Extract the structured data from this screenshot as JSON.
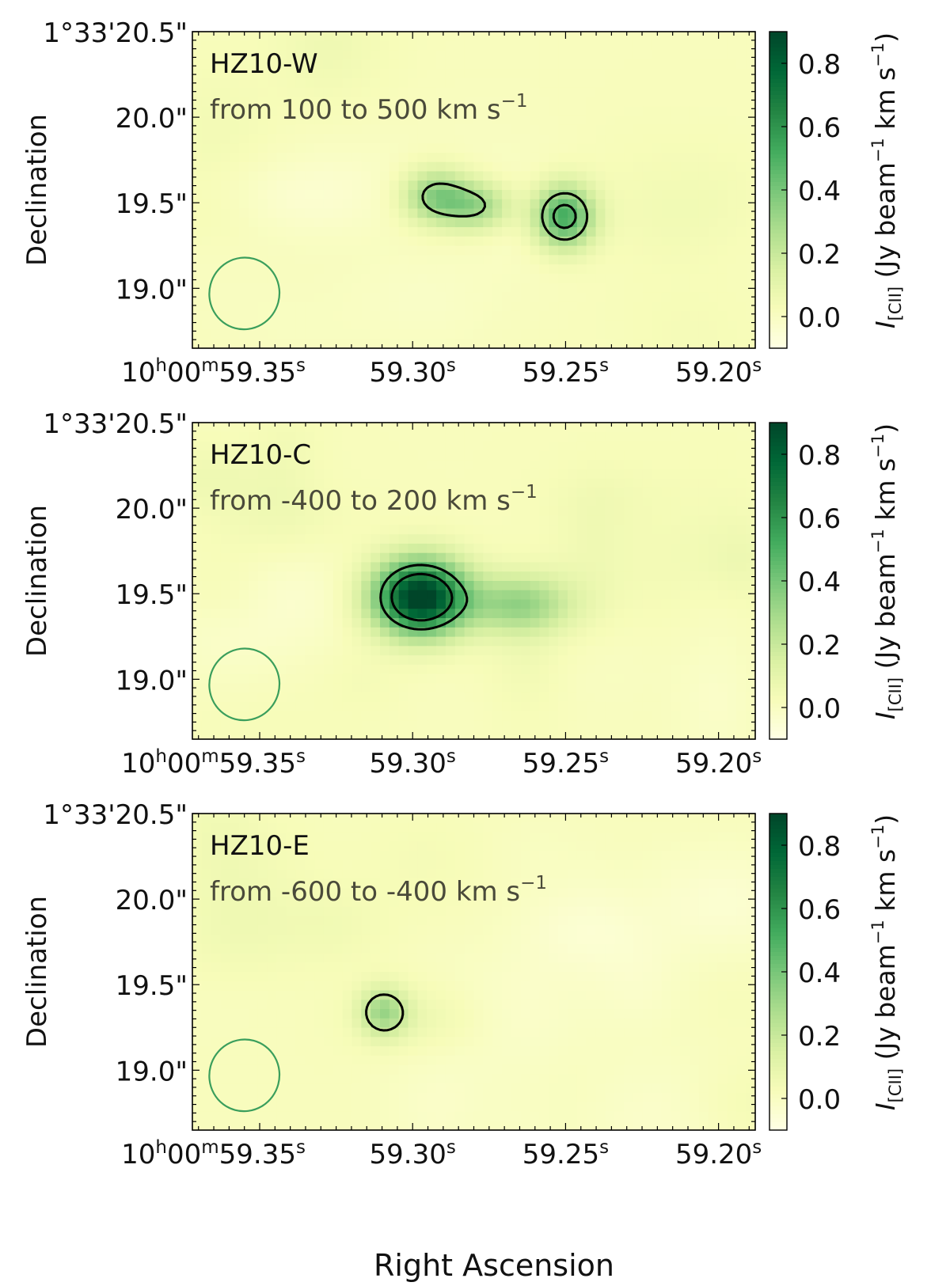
{
  "figure": {
    "xlabel": "Right Ascension",
    "ylabel": "Declination"
  },
  "chart_data": [
    {
      "type": "heatmap",
      "title": "HZ10-W",
      "subtitle_text": "from 100 to 500 km s",
      "subtitle_sup": "−1",
      "xlabel": "",
      "ylabel": "Declination",
      "xticks": [
        {
          "prefix_main": "10",
          "prefix_sup1": "h",
          "prefix_mid": "00",
          "prefix_sup2": "m",
          "main": "59.35",
          "sup": "s",
          "value": 59.35
        },
        {
          "main": "59.30",
          "sup": "s",
          "value": 59.3
        },
        {
          "main": "59.25",
          "sup": "s",
          "value": 59.25
        },
        {
          "main": "59.20",
          "sup": "s",
          "value": 59.2
        }
      ],
      "yticks": [
        {
          "label": "1°33'20.5\"",
          "value": 20.5
        },
        {
          "label": "20.0\"",
          "value": 20.0
        },
        {
          "label": "19.5\"",
          "value": 19.5
        },
        {
          "label": "19.0\"",
          "value": 19.0
        }
      ],
      "xlim": [
        59.372,
        59.188
      ],
      "ylim": [
        18.65,
        20.5
      ],
      "colorbar": {
        "label_main": "I",
        "label_sub": "[CII]",
        "label_rest": " (Jy beam",
        "label_sup1": "−1",
        "label_mid": " km s",
        "label_sup2": "−1",
        "label_end": ")",
        "range": [
          -0.1,
          0.9
        ],
        "ticks": [
          {
            "label": "0.8",
            "value": 0.8
          },
          {
            "label": "0.6",
            "value": 0.6
          },
          {
            "label": "0.4",
            "value": 0.4
          },
          {
            "label": "0.2",
            "value": 0.2
          },
          {
            "label": "0.0",
            "value": 0.0
          }
        ]
      },
      "sources": [
        {
          "ra": 59.2925,
          "dec": 19.54,
          "sra": 0.0075,
          "sdec": 0.11,
          "amp": 0.33
        },
        {
          "ra": 59.279,
          "dec": 19.48,
          "sra": 0.008,
          "sdec": 0.1,
          "amp": 0.3
        },
        {
          "ra": 59.2505,
          "dec": 19.42,
          "sra": 0.007,
          "sdec": 0.13,
          "amp": 0.52
        }
      ],
      "contour_levels": [
        0.3,
        0.45
      ],
      "beam": {
        "ra": 59.355,
        "dec": 18.97,
        "major": 0.33,
        "minor": 0.3,
        "pa": 15
      }
    },
    {
      "type": "heatmap",
      "title": "HZ10-C",
      "subtitle_text": "from -400 to 200 km s",
      "subtitle_sup": "−1",
      "xlabel": "",
      "ylabel": "Declination",
      "xticks": [
        {
          "prefix_main": "10",
          "prefix_sup1": "h",
          "prefix_mid": "00",
          "prefix_sup2": "m",
          "main": "59.35",
          "sup": "s",
          "value": 59.35
        },
        {
          "main": "59.30",
          "sup": "s",
          "value": 59.3
        },
        {
          "main": "59.25",
          "sup": "s",
          "value": 59.25
        },
        {
          "main": "59.20",
          "sup": "s",
          "value": 59.2
        }
      ],
      "yticks": [
        {
          "label": "1°33'20.5\"",
          "value": 20.5
        },
        {
          "label": "20.0\"",
          "value": 20.0
        },
        {
          "label": "19.5\"",
          "value": 19.5
        },
        {
          "label": "19.0\"",
          "value": 19.0
        }
      ],
      "xlim": [
        59.372,
        59.188
      ],
      "ylim": [
        18.65,
        20.5
      ],
      "colorbar": {
        "label_main": "I",
        "label_sub": "[CII]",
        "label_rest": " (Jy beam",
        "label_sup1": "−1",
        "label_mid": " km s",
        "label_sup2": "−1",
        "label_end": ")",
        "range": [
          -0.1,
          0.9
        ],
        "ticks": [
          {
            "label": "0.8",
            "value": 0.8
          },
          {
            "label": "0.6",
            "value": 0.6
          },
          {
            "label": "0.4",
            "value": 0.4
          },
          {
            "label": "0.2",
            "value": 0.2
          },
          {
            "label": "0.0",
            "value": 0.0
          }
        ]
      },
      "sources": [
        {
          "ra": 59.2975,
          "dec": 19.48,
          "sra": 0.0105,
          "sdec": 0.15,
          "amp": 0.95
        },
        {
          "ra": 59.265,
          "dec": 19.44,
          "sra": 0.012,
          "sdec": 0.12,
          "amp": 0.3
        }
      ],
      "contour_levels": [
        0.45,
        0.65
      ],
      "beam": {
        "ra": 59.355,
        "dec": 18.97,
        "major": 0.33,
        "minor": 0.3,
        "pa": 15
      }
    },
    {
      "type": "heatmap",
      "title": "HZ10-E",
      "subtitle_text": "from -600 to -400 km s",
      "subtitle_sup": "−1",
      "xlabel": "Right Ascension",
      "ylabel": "Declination",
      "xticks": [
        {
          "prefix_main": "10",
          "prefix_sup1": "h",
          "prefix_mid": "00",
          "prefix_sup2": "m",
          "main": "59.35",
          "sup": "s",
          "value": 59.35
        },
        {
          "main": "59.30",
          "sup": "s",
          "value": 59.3
        },
        {
          "main": "59.25",
          "sup": "s",
          "value": 59.25
        },
        {
          "main": "59.20",
          "sup": "s",
          "value": 59.2
        }
      ],
      "yticks": [
        {
          "label": "1°33'20.5\"",
          "value": 20.5
        },
        {
          "label": "20.0\"",
          "value": 20.0
        },
        {
          "label": "19.5\"",
          "value": 19.5
        },
        {
          "label": "19.0\"",
          "value": 19.0
        }
      ],
      "xlim": [
        59.372,
        59.188
      ],
      "ylim": [
        18.65,
        20.5
      ],
      "colorbar": {
        "label_main": "I",
        "label_sub": "[CII]",
        "label_rest": " (Jy beam",
        "label_sup1": "−1",
        "label_mid": " km s",
        "label_sup2": "−1",
        "label_end": ")",
        "range": [
          -0.1,
          0.9
        ],
        "ticks": [
          {
            "label": "0.8",
            "value": 0.8
          },
          {
            "label": "0.6",
            "value": 0.6
          },
          {
            "label": "0.4",
            "value": 0.4
          },
          {
            "label": "0.2",
            "value": 0.2
          },
          {
            "label": "0.0",
            "value": 0.0
          }
        ]
      },
      "sources": [
        {
          "ra": 59.3095,
          "dec": 19.34,
          "sra": 0.0055,
          "sdec": 0.1,
          "amp": 0.28
        },
        {
          "ra": 59.295,
          "dec": 19.3,
          "sra": 0.015,
          "sdec": 0.14,
          "amp": 0.06
        }
      ],
      "contour_levels": [
        0.2
      ],
      "beam": {
        "ra": 59.355,
        "dec": 18.97,
        "major": 0.33,
        "minor": 0.3,
        "pa": 15
      }
    }
  ],
  "colors": {
    "cmap": [
      "#ffffe5",
      "#f7fcb9",
      "#d9f0a3",
      "#addd8e",
      "#78c679",
      "#41ab5d",
      "#238443",
      "#006837",
      "#004529"
    ],
    "beam": "#3a9e5c",
    "contour": "#000000",
    "subtitle": "#4a4a3a"
  }
}
